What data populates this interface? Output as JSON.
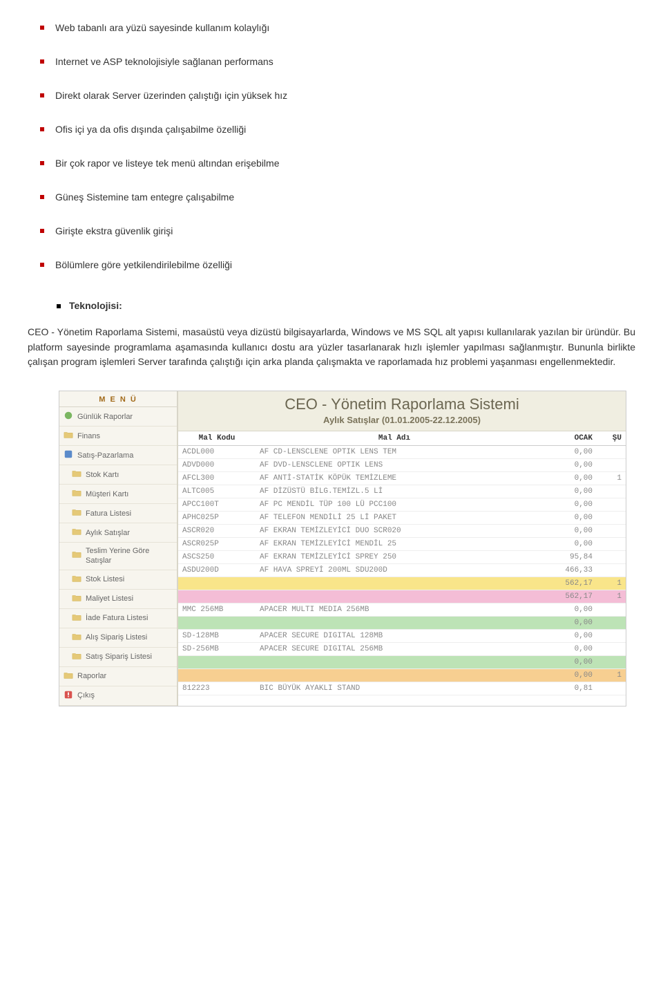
{
  "bullets": [
    "Web tabanlı ara yüzü sayesinde kullanım kolaylığı",
    "Internet ve ASP teknolojisiyle sağlanan performans",
    "Direkt olarak Server üzerinden çalıştığı için yüksek hız",
    "Ofis içi ya da ofis dışında çalışabilme özelliği",
    "Bir çok rapor ve listeye tek menü altından erişebilme",
    "Güneş Sistemine tam entegre çalışabilme",
    "Girişte ekstra güvenlik girişi",
    "Bölümlere göre yetkilendirilebilme özelliği"
  ],
  "tech_label": "Teknolojisi:",
  "paragraph": "CEO - Yönetim Raporlama Sistemi, masaüstü veya dizüstü bilgisayarlarda, Windows ve MS SQL alt yapısı kullanılarak yazılan bir üründür. Bu platform sayesinde programlama aşamasında kullanıcı dostu ara yüzler tasarlanarak hızlı işlemler yapılması sağlanmıştır. Bununla birlikte çalışan program işlemleri Server tarafında çalıştığı için arka planda çalışmakta ve raporlamada hız problemi yaşanması engellenmektedir.",
  "menu": {
    "title": "M E N Ü",
    "items": [
      {
        "label": "Günlük Raporlar",
        "icon": "green",
        "sub": false
      },
      {
        "label": "Finans",
        "icon": "folder",
        "sub": false
      },
      {
        "label": "Satış-Pazarlama",
        "icon": "blue",
        "sub": false
      },
      {
        "label": "Stok Kartı",
        "icon": "folder",
        "sub": true
      },
      {
        "label": "Müşteri Kartı",
        "icon": "folder",
        "sub": true
      },
      {
        "label": "Fatura Listesi",
        "icon": "folder",
        "sub": true
      },
      {
        "label": "Aylık Satışlar",
        "icon": "folder",
        "sub": true
      },
      {
        "label": "Teslim Yerine Göre Satışlar",
        "icon": "folder",
        "sub": true,
        "wrap": true
      },
      {
        "label": "Stok Listesi",
        "icon": "folder",
        "sub": true
      },
      {
        "label": "Maliyet Listesi",
        "icon": "folder",
        "sub": true
      },
      {
        "label": "İade Fatura Listesi",
        "icon": "folder",
        "sub": true
      },
      {
        "label": "Alış Sipariş Listesi",
        "icon": "folder",
        "sub": true
      },
      {
        "label": "Satış Sipariş Listesi",
        "icon": "folder",
        "sub": true
      },
      {
        "label": "Raporlar",
        "icon": "folder",
        "sub": false
      },
      {
        "label": "Çıkış",
        "icon": "red",
        "sub": false
      }
    ]
  },
  "banner": {
    "title": "CEO - Yönetim Raporlama Sistemi",
    "subtitle": "Aylık Satışlar (01.01.2005-22.12.2005)"
  },
  "table": {
    "headers": [
      "Mal Kodu",
      "Mal Adı",
      "OCAK",
      "ŞU"
    ],
    "rows": [
      {
        "c": [
          "ACDL000",
          "AF CD-LENSCLENE OPTIK LENS TEM",
          "0,00",
          ""
        ],
        "cls": ""
      },
      {
        "c": [
          "ADVD000",
          "AF DVD-LENSCLENE OPTIK LENS",
          "0,00",
          ""
        ],
        "cls": ""
      },
      {
        "c": [
          "AFCL300",
          "AF ANTİ-STATİK KÖPÜK TEMİZLEME",
          "0,00",
          "1"
        ],
        "cls": ""
      },
      {
        "c": [
          "ALTC005",
          "AF DİZÜSTÜ BİLG.TEMİZL.5 Lİ",
          "0,00",
          ""
        ],
        "cls": ""
      },
      {
        "c": [
          "APCC100T",
          "AF PC MENDİL TÜP 100 LÜ PCC100",
          "0,00",
          ""
        ],
        "cls": ""
      },
      {
        "c": [
          "APHC025P",
          "AF TELEFON MENDİLİ 25 Lİ PAKET",
          "0,00",
          ""
        ],
        "cls": ""
      },
      {
        "c": [
          "ASCR020",
          "AF EKRAN TEMİZLEYİCİ DUO SCR020",
          "0,00",
          ""
        ],
        "cls": ""
      },
      {
        "c": [
          "ASCR025P",
          "AF EKRAN TEMİZLEYİCİ MENDİL 25",
          "0,00",
          ""
        ],
        "cls": ""
      },
      {
        "c": [
          "ASCS250",
          "AF EKRAN TEMİZLEYİCİ SPREY 250",
          "95,84",
          ""
        ],
        "cls": ""
      },
      {
        "c": [
          "ASDU200D",
          "AF HAVA SPREYİ 200ML SDU200D",
          "466,33",
          ""
        ],
        "cls": ""
      },
      {
        "c": [
          "",
          "",
          "562,17",
          "1"
        ],
        "cls": "sub-yellow"
      },
      {
        "c": [
          "",
          "",
          "562,17",
          "1"
        ],
        "cls": "sub-pink"
      },
      {
        "c": [
          "MMC 256MB",
          "APACER MULTI MEDIA 256MB",
          "0,00",
          ""
        ],
        "cls": ""
      },
      {
        "c": [
          "",
          "",
          "0,00",
          ""
        ],
        "cls": "sub-green"
      },
      {
        "c": [
          "SD-128MB",
          "APACER SECURE DIGITAL 128MB",
          "0,00",
          ""
        ],
        "cls": ""
      },
      {
        "c": [
          "SD-256MB",
          "APACER SECURE DIGITAL 256MB",
          "0,00",
          ""
        ],
        "cls": ""
      },
      {
        "c": [
          "",
          "",
          "0,00",
          ""
        ],
        "cls": "sub-green"
      },
      {
        "c": [
          "",
          "",
          "0,00",
          "1"
        ],
        "cls": "sub-orange"
      },
      {
        "c": [
          "812223",
          "BIC BÜYÜK AYAKLI STAND",
          "0,81",
          ""
        ],
        "cls": ""
      }
    ]
  }
}
